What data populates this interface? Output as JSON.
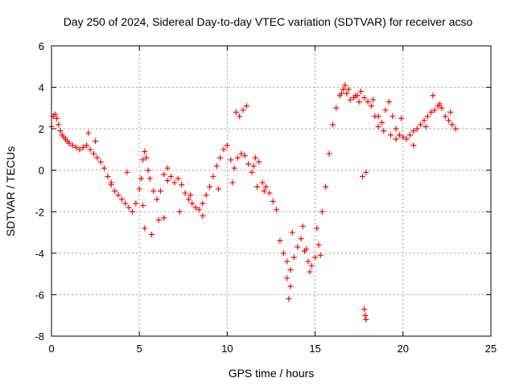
{
  "chart_data": {
    "type": "scatter",
    "title": "Day 250 of 2024, Sidereal Day-to-day VTEC variation (SDTVAR) for receiver acso",
    "xlabel": "GPS time / hours",
    "ylabel": "SDTVAR / TECUs",
    "xlim": [
      0,
      25
    ],
    "ylim": [
      -8,
      6
    ],
    "xticks": [
      0,
      5,
      10,
      15,
      20,
      25
    ],
    "yticks": [
      -8,
      -6,
      -4,
      -2,
      0,
      2,
      4,
      6
    ],
    "grid": true,
    "marker": "plus",
    "series": [
      {
        "name": "SDTVAR",
        "color": "#ff0000",
        "x": [
          0.0,
          0.1,
          0.2,
          0.3,
          0.4,
          0.5,
          0.6,
          0.7,
          0.8,
          0.9,
          1.0,
          1.2,
          1.4,
          1.6,
          1.8,
          2.0,
          2.2,
          2.4,
          2.6,
          2.8,
          3.0,
          3.2,
          3.4,
          3.6,
          3.8,
          4.0,
          4.2,
          4.4,
          4.6,
          4.8,
          5.0,
          5.1,
          5.2,
          5.3,
          5.4,
          5.5,
          5.6,
          5.8,
          6.0,
          6.2,
          6.4,
          6.6,
          6.8,
          7.0,
          7.2,
          7.4,
          7.6,
          7.8,
          8.0,
          8.2,
          8.4,
          8.6,
          8.8,
          9.0,
          9.2,
          9.4,
          9.6,
          9.8,
          10.0,
          10.2,
          10.4,
          10.6,
          10.8,
          11.0,
          11.2,
          11.4,
          11.6,
          11.8,
          12.0,
          12.2,
          12.4,
          12.6,
          12.8,
          13.0,
          13.2,
          13.4,
          13.6,
          13.8,
          14.0,
          14.2,
          14.4,
          14.6,
          14.8,
          15.0,
          15.2,
          15.4,
          15.6,
          15.8,
          16.0,
          16.2,
          16.4,
          16.6,
          16.8,
          17.0,
          17.2,
          17.4,
          17.6,
          17.8,
          18.0,
          18.2,
          18.4,
          18.6,
          18.8,
          19.0,
          19.2,
          19.4,
          19.6,
          19.8,
          20.0,
          20.2,
          20.4,
          20.6,
          20.8,
          21.0,
          21.2,
          21.4,
          21.6,
          21.8,
          22.0,
          22.2,
          22.4,
          22.6,
          22.8,
          23.0,
          2.1,
          2.5,
          3.4,
          4.3,
          5.2,
          5.3,
          5.7,
          6.1,
          6.4,
          6.6,
          7.3,
          7.9,
          8.6,
          9.5,
          10.3,
          10.5,
          10.7,
          10.9,
          11.1,
          11.5,
          11.7,
          12.1,
          13.4,
          13.5,
          13.6,
          13.7,
          14.3,
          14.5,
          14.7,
          15.1,
          15.3,
          16.5,
          16.7,
          16.9,
          17.3,
          17.5,
          17.7,
          17.9,
          17.8,
          17.85,
          17.9,
          18.3,
          18.6,
          18.9,
          19.3,
          19.6,
          19.9,
          20.6,
          21.3,
          21.7,
          22.1,
          22.7
        ],
        "y": [
          2.1,
          2.6,
          2.7,
          2.5,
          2.2,
          1.9,
          1.7,
          1.6,
          1.5,
          1.4,
          1.3,
          1.2,
          1.1,
          1.0,
          1.1,
          1.2,
          1.0,
          0.8,
          0.6,
          0.4,
          0.1,
          -0.3,
          -0.7,
          -1.0,
          -1.2,
          -1.4,
          -1.6,
          -1.8,
          -2.0,
          -1.6,
          -0.9,
          -0.4,
          0.5,
          0.9,
          0.6,
          0.0,
          -0.4,
          -1.0,
          -1.4,
          -1.0,
          -0.2,
          0.1,
          -0.3,
          -0.6,
          -0.4,
          -0.7,
          -1.1,
          -1.4,
          -1.6,
          -1.8,
          -1.9,
          -1.6,
          -1.2,
          -0.8,
          -0.3,
          0.2,
          0.6,
          1.0,
          1.2,
          0.5,
          0.1,
          0.6,
          0.8,
          0.7,
          0.3,
          -0.1,
          0.6,
          0.4,
          -0.6,
          -0.8,
          -1.1,
          -1.5,
          -1.9,
          -3.4,
          -4.0,
          -4.4,
          -4.8,
          -4.2,
          -3.7,
          -3.3,
          -3.9,
          -4.4,
          -4.6,
          -4.2,
          -3.6,
          -2.0,
          -0.8,
          0.8,
          2.2,
          3.0,
          3.6,
          3.9,
          3.7,
          3.4,
          3.5,
          3.6,
          3.8,
          3.5,
          3.3,
          3.1,
          2.6,
          2.1,
          2.3,
          2.9,
          3.3,
          2.6,
          2.0,
          1.7,
          1.6,
          1.5,
          1.7,
          1.9,
          2.0,
          2.2,
          2.4,
          2.6,
          2.8,
          2.9,
          3.1,
          3.0,
          2.6,
          2.4,
          2.2,
          2.0,
          1.8,
          1.4,
          -0.6,
          -0.1,
          -1.7,
          -2.8,
          -3.1,
          -2.4,
          -2.3,
          -0.5,
          -2.0,
          -1.2,
          -2.2,
          -0.9,
          -0.6,
          2.8,
          2.6,
          2.9,
          3.1,
          0.2,
          -0.8,
          -1.0,
          -5.2,
          -6.2,
          -5.6,
          -3.0,
          -2.7,
          -3.8,
          -4.9,
          -2.8,
          -4.1,
          3.7,
          4.1,
          3.9,
          3.6,
          3.3,
          -0.3,
          -0.1,
          -6.7,
          -7.0,
          -7.2,
          3.4,
          2.6,
          1.9,
          1.7,
          1.5,
          2.5,
          1.2,
          2.1,
          3.6,
          3.2,
          2.8
        ]
      }
    ]
  }
}
